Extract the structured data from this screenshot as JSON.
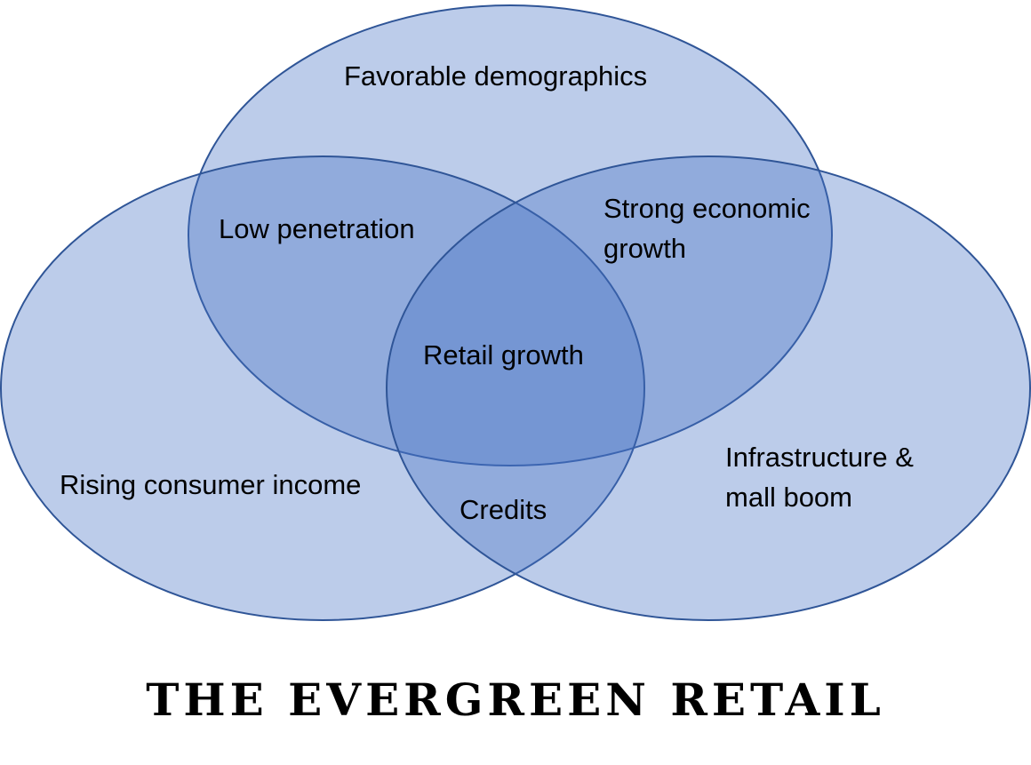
{
  "diagram": {
    "type": "venn",
    "colors": {
      "fill": "#4472c4",
      "stroke": "#2f5597",
      "background": "#ffffff",
      "text": "#000000"
    },
    "circles": [
      {
        "name": "top",
        "label": "Favorable demographics"
      },
      {
        "name": "left",
        "label": "Rising consumer income"
      },
      {
        "name": "right",
        "label": [
          "Infrastructure &",
          "mall boom"
        ]
      }
    ],
    "intersections": {
      "top_left": "Low penetration",
      "top_right": [
        "Strong economic",
        "growth"
      ],
      "left_right": "Credits",
      "center": "Retail growth"
    }
  },
  "title": "THE EVERGREEN RETAIL"
}
